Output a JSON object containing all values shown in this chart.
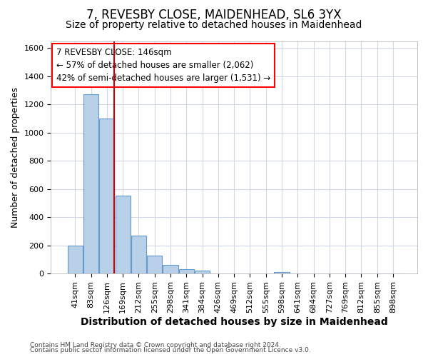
{
  "title": "7, REVESBY CLOSE, MAIDENHEAD, SL6 3YX",
  "subtitle": "Size of property relative to detached houses in Maidenhead",
  "xlabel": "Distribution of detached houses by size in Maidenhead",
  "ylabel": "Number of detached properties",
  "footer_line1": "Contains HM Land Registry data © Crown copyright and database right 2024.",
  "footer_line2": "Contains public sector information licensed under the Open Government Licence v3.0.",
  "bar_labels": [
    "41sqm",
    "83sqm",
    "126sqm",
    "169sqm",
    "212sqm",
    "255sqm",
    "298sqm",
    "341sqm",
    "384sqm",
    "426sqm",
    "469sqm",
    "512sqm",
    "555sqm",
    "598sqm",
    "641sqm",
    "684sqm",
    "727sqm",
    "769sqm",
    "812sqm",
    "855sqm",
    "898sqm"
  ],
  "bar_values": [
    200,
    1270,
    1100,
    555,
    270,
    125,
    60,
    30,
    20,
    0,
    0,
    0,
    0,
    12,
    0,
    0,
    0,
    0,
    0,
    0,
    0
  ],
  "bar_color": "#b8d0e8",
  "bar_edge_color": "#6699cc",
  "ylim": [
    0,
    1650
  ],
  "yticks": [
    0,
    200,
    400,
    600,
    800,
    1000,
    1200,
    1400,
    1600
  ],
  "vline_color": "#cc0000",
  "background_color": "#ffffff",
  "plot_bg_color": "#ffffff",
  "grid_color": "#d0d8e8",
  "title_fontsize": 12,
  "subtitle_fontsize": 10,
  "xlabel_fontsize": 10,
  "ylabel_fontsize": 9,
  "tick_fontsize": 8,
  "annotation_fontsize": 8.5,
  "annotation_line1": "7 REVESBY CLOSE: 146sqm",
  "annotation_line2": "← 57% of detached houses are smaller (2,062)",
  "annotation_line3": "42% of semi-detached houses are larger (1,531) →"
}
